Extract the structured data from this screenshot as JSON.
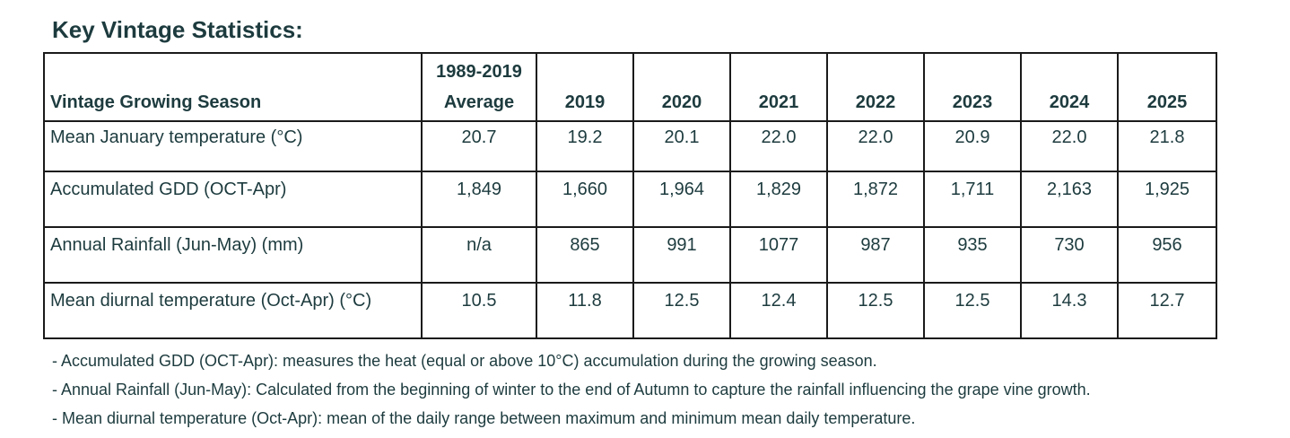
{
  "title": "Key Vintage Statistics:",
  "table": {
    "header": {
      "label": "Vintage Growing Season",
      "average_line1": "1989-2019",
      "average_line2": "Average",
      "years": [
        "2019",
        "2020",
        "2021",
        "2022",
        "2023",
        "2024",
        "2025"
      ]
    },
    "rows": [
      {
        "label": "Mean January temperature (°C)",
        "average": "20.7",
        "values": [
          "19.2",
          "20.1",
          "22.0",
          "22.0",
          "20.9",
          "22.0",
          "21.8"
        ]
      },
      {
        "label": "Accumulated GDD (OCT-Apr)",
        "average": "1,849",
        "values": [
          "1,660",
          "1,964",
          "1,829",
          "1,872",
          "1,711",
          "2,163",
          "1,925"
        ]
      },
      {
        "label": "Annual Rainfall (Jun-May) (mm)",
        "average": "n/a",
        "values": [
          "865",
          "991",
          "1077",
          "987",
          "935",
          "730",
          "956"
        ]
      },
      {
        "label": "Mean diurnal temperature (Oct-Apr) (°C)",
        "average": "10.5",
        "values": [
          "11.8",
          "12.5",
          "12.4",
          "12.5",
          "12.5",
          "14.3",
          "12.7"
        ]
      }
    ]
  },
  "notes": [
    "- Accumulated GDD (OCT-Apr):  measures the heat (equal or above 10°C) accumulation during the growing season.",
    "- Annual Rainfall (Jun-May): Calculated from the beginning of winter to the end of Autumn to capture the rainfall influencing the grape vine growth.",
    "- Mean diurnal temperature (Oct-Apr): mean of the daily range between maximum and minimum mean daily temperature."
  ]
}
